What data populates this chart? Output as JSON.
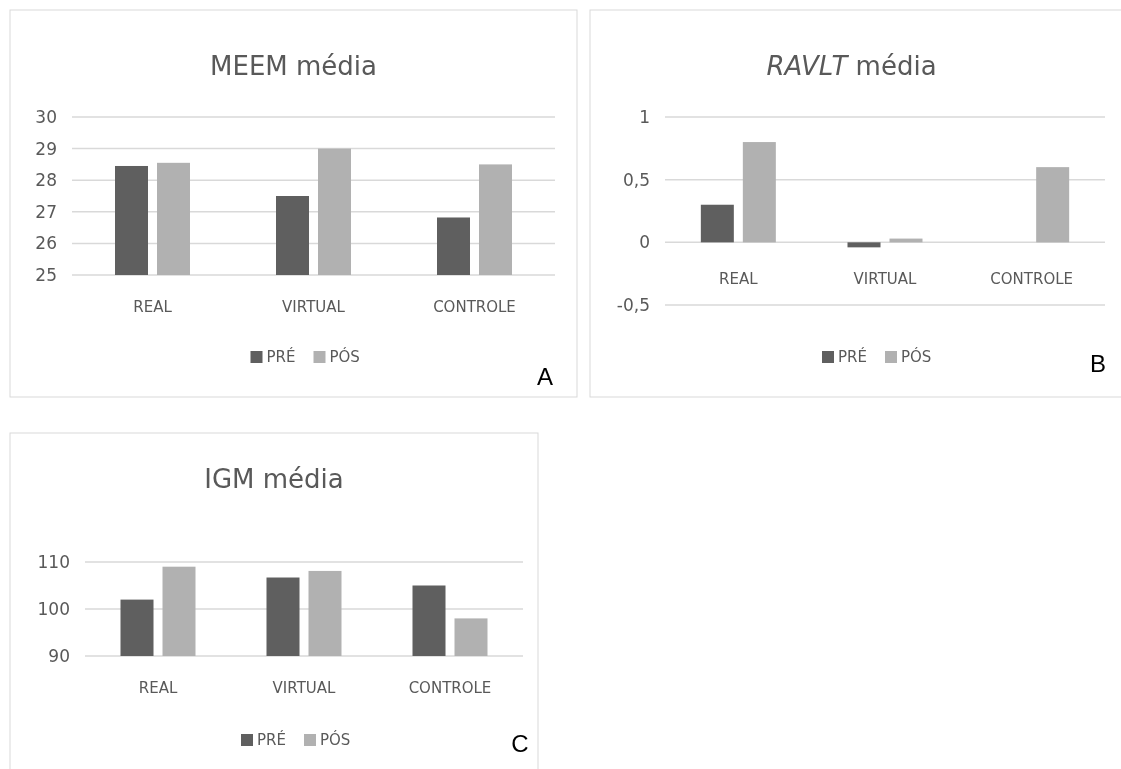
{
  "chart_data": [
    {
      "type": "bar",
      "title": "MEEM média",
      "categories": [
        "REAL",
        "VIRTUAL",
        "CONTROLE"
      ],
      "series": [
        {
          "name": "PRÉ",
          "color": "#5f5f5f",
          "values": [
            28.45,
            27.5,
            26.82
          ]
        },
        {
          "name": "PÓS",
          "color": "#b1b1b1",
          "values": [
            28.55,
            29.0,
            28.5
          ]
        }
      ],
      "ylim": [
        25,
        30
      ],
      "yticks": [
        25,
        26,
        27,
        28,
        29,
        30
      ],
      "grid": "y",
      "legend": "bottom",
      "annotations": [
        "A"
      ]
    },
    {
      "type": "bar",
      "title": "RAVLT média",
      "categories": [
        "REAL",
        "VIRTUAL",
        "CONTROLE"
      ],
      "series": [
        {
          "name": "PRÉ",
          "color": "#5f5f5f",
          "values": [
            0.3,
            -0.04,
            0
          ]
        },
        {
          "name": "PÓS",
          "color": "#b1b1b1",
          "values": [
            0.8,
            0.03,
            0.6
          ]
        }
      ],
      "ylim": [
        -0.5,
        1
      ],
      "yticks": [
        {
          "value": -0.5,
          "label": "-0,5"
        },
        0,
        {
          "value": 0.5,
          "label": "0,5"
        },
        1
      ],
      "grid": "y",
      "legend": "bottom",
      "annotations": [
        "B"
      ]
    },
    {
      "type": "bar",
      "title": "IGM média",
      "categories": [
        "REAL",
        "VIRTUAL",
        "CONTROLE"
      ],
      "series": [
        {
          "name": "PRÉ",
          "color": "#5f5f5f",
          "values": [
            102,
            106.7,
            105
          ]
        },
        {
          "name": "PÓS",
          "color": "#b1b1b1",
          "values": [
            109,
            108.1,
            98
          ]
        }
      ],
      "ylim": [
        90,
        110
      ],
      "yticks": [
        90,
        100,
        110
      ],
      "grid": "y",
      "legend": "bottom",
      "annotations": [
        "C"
      ]
    }
  ]
}
